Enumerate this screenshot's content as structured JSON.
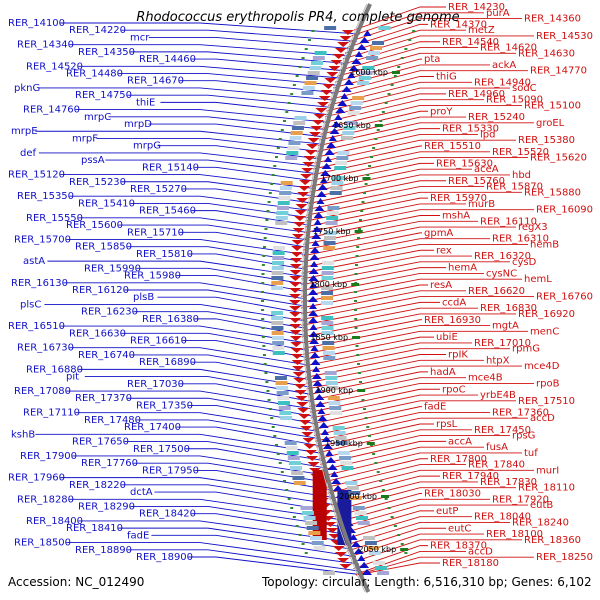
{
  "title": "Rhodococcus erythropolis PR4, complete genome",
  "accession": "Accession: NC_012490",
  "summary": "Topology: circular; Length: 6,516,310 bp; Genes: 6,102",
  "colors": {
    "forward": "#d01010",
    "reverse": "#1010c8",
    "backbone": "#7a7a7a",
    "gc": "#2e8b2e"
  },
  "scale_marks": [
    "1600 kbp",
    "1650 kbp",
    "1700 kbp",
    "1750 kbp",
    "1800 kbp",
    "1850 kbp",
    "1900 kbp",
    "1950 kbp",
    "2000 kbp",
    "2050 kbp"
  ],
  "left_labels": [
    "RER_14100",
    "RER_14220",
    "mcr",
    "RER_14340",
    "RER_14350",
    "RER_14460",
    "RER_14520",
    "RER_14480",
    "RER_14670",
    "pknG",
    "RER_14750",
    "thiE",
    "RER_14760",
    "mrpC",
    "mrpD",
    "mrpE",
    "mrpF",
    "mrpG",
    "def",
    "pssA",
    "RER_15140",
    "RER_15120",
    "RER_15230",
    "RER_15270",
    "RER_15350",
    "RER_15410",
    "RER_15460",
    "RER_15550",
    "RER_15600",
    "RER_15710",
    "RER_15700",
    "RER_15850",
    "RER_15810",
    "astA",
    "RER_15990",
    "RER_15980",
    "RER_16130",
    "RER_16120",
    "plsB",
    "plsC",
    "RER_16230",
    "RER_16380",
    "RER_16510",
    "RER_16630",
    "RER_16610",
    "RER_16730",
    "RER_16740",
    "RER_16890",
    "RER_16880",
    "pit",
    "RER_17030",
    "RER_17080",
    "RER_17370",
    "RER_17350",
    "RER_17110",
    "RER_17480",
    "RER_17400",
    "kshB",
    "RER_17650",
    "RER_17500",
    "RER_17900",
    "RER_17760",
    "RER_17950",
    "RER_17960",
    "RER_18220",
    "dctA",
    "RER_18280",
    "RER_18290",
    "RER_18420",
    "RER_18400",
    "RER_18410",
    "fadE",
    "RER_18500",
    "RER_18890",
    "RER_18900"
  ],
  "right_labels": [
    "RER_14230",
    "purA",
    "RER_14360",
    "RER_14370",
    "metZ",
    "RER_14530",
    "RER_14540",
    "RER_14620",
    "RER_14630",
    "pta",
    "ackA",
    "RER_14770",
    "thiG",
    "RER_14940",
    "sodC",
    "RER_14960",
    "RER_15090",
    "RER_15100",
    "proY",
    "RER_15240",
    "groEL",
    "RER_15330",
    "lpd",
    "RER_15380",
    "RER_15510",
    "RER_15520",
    "RER_15620",
    "RER_15630",
    "aceA",
    "hbd",
    "RER_15760",
    "RER_15870",
    "RER_15880",
    "RER_15970",
    "murB",
    "RER_16090",
    "mshA",
    "RER_16110",
    "regX3",
    "gpmA",
    "RER_16310",
    "hemB",
    "rex",
    "RER_16320",
    "cysD",
    "hemA",
    "cysNC",
    "hemL",
    "resA",
    "RER_16620",
    "RER_16760",
    "ccdA",
    "RER_16830",
    "RER_16920",
    "RER_16930",
    "mgtA",
    "menC",
    "ubiE",
    "RER_17010",
    "rpmG",
    "rpIK",
    "htpX",
    "mce4D",
    "hadA",
    "mce4B",
    "rpoB",
    "rpoC",
    "yrbE4B",
    "RER_17510",
    "fadE",
    "RER_17360",
    "accD",
    "rpsL",
    "RER_17450",
    "rpsG",
    "accA",
    "fusA",
    "tuf",
    "RER_17800",
    "RER_17840",
    "murI",
    "RER_17940",
    "RER_17830",
    "RER_18110",
    "RER_18030",
    "RER_17920",
    "eutB",
    "eutP",
    "RER_18040",
    "RER_18240",
    "eutC",
    "RER_18100",
    "RER_18360",
    "RER_18370",
    "accD",
    "RER_18250",
    "RER_18180"
  ]
}
